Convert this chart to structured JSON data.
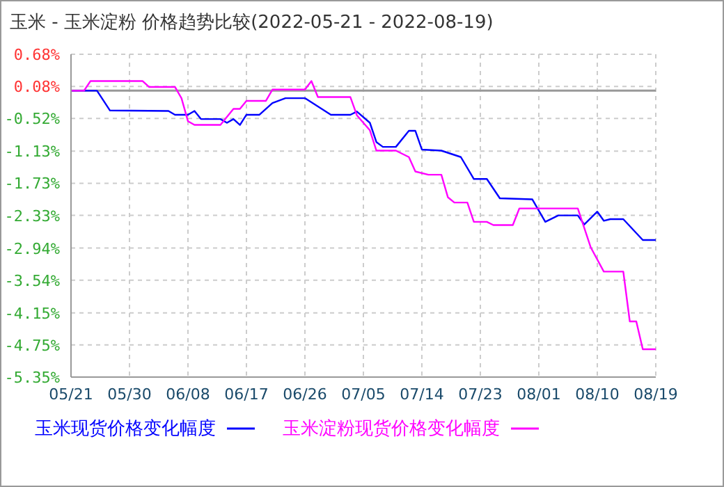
{
  "chart_data": {
    "type": "line",
    "title": "玉米 - 玉米淀粉 价格趋势比较(2022-05-21 - 2022-08-19)",
    "series": [
      {
        "name": "玉米现货价格变化幅度",
        "color": "#0000ff",
        "x": [
          "2022-05-21",
          "2022-05-25",
          "2022-05-27",
          "2022-06-05",
          "2022-06-06",
          "2022-06-08",
          "2022-06-09",
          "2022-06-10",
          "2022-06-13",
          "2022-06-14",
          "2022-06-15",
          "2022-06-16",
          "2022-06-17",
          "2022-06-19",
          "2022-06-21",
          "2022-06-23",
          "2022-06-26",
          "2022-06-30",
          "2022-07-03",
          "2022-07-04",
          "2022-07-06",
          "2022-07-07",
          "2022-07-08",
          "2022-07-10",
          "2022-07-12",
          "2022-07-13",
          "2022-07-14",
          "2022-07-17",
          "2022-07-20",
          "2022-07-22",
          "2022-07-24",
          "2022-07-26",
          "2022-07-31",
          "2022-08-02",
          "2022-08-04",
          "2022-08-07",
          "2022-08-08",
          "2022-08-10",
          "2022-08-11",
          "2022-08-12",
          "2022-08-14",
          "2022-08-17",
          "2022-08-19"
        ],
        "values": [
          0,
          0,
          -0.37,
          -0.38,
          -0.45,
          -0.45,
          -0.38,
          -0.53,
          -0.53,
          -0.6,
          -0.53,
          -0.64,
          -0.45,
          -0.45,
          -0.23,
          -0.14,
          -0.14,
          -0.45,
          -0.45,
          -0.39,
          -0.6,
          -0.96,
          -1.05,
          -1.05,
          -0.75,
          -0.75,
          -1.1,
          -1.12,
          -1.24,
          -1.65,
          -1.65,
          -2.01,
          -2.03,
          -2.45,
          -2.33,
          -2.33,
          -2.5,
          -2.26,
          -2.43,
          -2.4,
          -2.4,
          -2.79,
          -2.79
        ]
      },
      {
        "name": "玉米淀粉现货价格变化幅度",
        "color": "#ff00ff",
        "x": [
          "2022-05-21",
          "2022-05-23",
          "2022-05-24",
          "2022-06-01",
          "2022-06-02",
          "2022-06-06",
          "2022-06-07",
          "2022-06-08",
          "2022-06-09",
          "2022-06-13",
          "2022-06-15",
          "2022-06-16",
          "2022-06-17",
          "2022-06-20",
          "2022-06-21",
          "2022-06-26",
          "2022-06-27",
          "2022-06-28",
          "2022-07-03",
          "2022-07-04",
          "2022-07-06",
          "2022-07-07",
          "2022-07-10",
          "2022-07-12",
          "2022-07-13",
          "2022-07-15",
          "2022-07-17",
          "2022-07-18",
          "2022-07-19",
          "2022-07-21",
          "2022-07-22",
          "2022-07-24",
          "2022-07-25",
          "2022-07-28",
          "2022-07-29",
          "2022-08-07",
          "2022-08-09",
          "2022-08-11",
          "2022-08-14",
          "2022-08-15",
          "2022-08-16",
          "2022-08-17",
          "2022-08-19"
        ],
        "values": [
          0,
          0,
          0.18,
          0.18,
          0.07,
          0.07,
          -0.14,
          -0.57,
          -0.64,
          -0.64,
          -0.34,
          -0.34,
          -0.19,
          -0.19,
          0.02,
          0.02,
          0.18,
          -0.12,
          -0.12,
          -0.46,
          -0.74,
          -1.12,
          -1.12,
          -1.24,
          -1.51,
          -1.57,
          -1.57,
          -1.99,
          -2.09,
          -2.09,
          -2.45,
          -2.45,
          -2.51,
          -2.51,
          -2.2,
          -2.2,
          -2.93,
          -3.38,
          -3.38,
          -4.31,
          -4.31,
          -4.83,
          -4.83
        ]
      }
    ],
    "xlim": [
      "2022-05-21",
      "2022-08-19"
    ],
    "xticks": [
      {
        "value": "2022-05-21",
        "label": "05/21"
      },
      {
        "value": "2022-05-30",
        "label": "05/30"
      },
      {
        "value": "2022-06-08",
        "label": "06/08"
      },
      {
        "value": "2022-06-17",
        "label": "06/17"
      },
      {
        "value": "2022-06-26",
        "label": "06/26"
      },
      {
        "value": "2022-07-05",
        "label": "07/05"
      },
      {
        "value": "2022-07-14",
        "label": "07/14"
      },
      {
        "value": "2022-07-23",
        "label": "07/23"
      },
      {
        "value": "2022-08-01",
        "label": "08/01"
      },
      {
        "value": "2022-08-10",
        "label": "08/10"
      },
      {
        "value": "2022-08-19",
        "label": "08/19"
      }
    ],
    "ylim": [
      -5.35,
      0.68
    ],
    "yticks": [
      {
        "value": 0.68,
        "label": "0.68%"
      },
      {
        "value": 0.08,
        "label": "0.08%"
      },
      {
        "value": -0.52,
        "label": "-0.52%"
      },
      {
        "value": -1.13,
        "label": "-1.13%"
      },
      {
        "value": -1.73,
        "label": "-1.73%"
      },
      {
        "value": -2.33,
        "label": "-2.33%"
      },
      {
        "value": -2.94,
        "label": "-2.94%"
      },
      {
        "value": -3.54,
        "label": "-3.54%"
      },
      {
        "value": -4.15,
        "label": "-4.15%"
      },
      {
        "value": -4.75,
        "label": "-4.75%"
      },
      {
        "value": -5.35,
        "label": "-5.35%"
      }
    ],
    "ref_lines": [
      {
        "axis": "y",
        "value": 0,
        "color": "#999999"
      }
    ],
    "grid": true,
    "legend": "bottom",
    "marker": "none",
    "line_style": "solid"
  }
}
